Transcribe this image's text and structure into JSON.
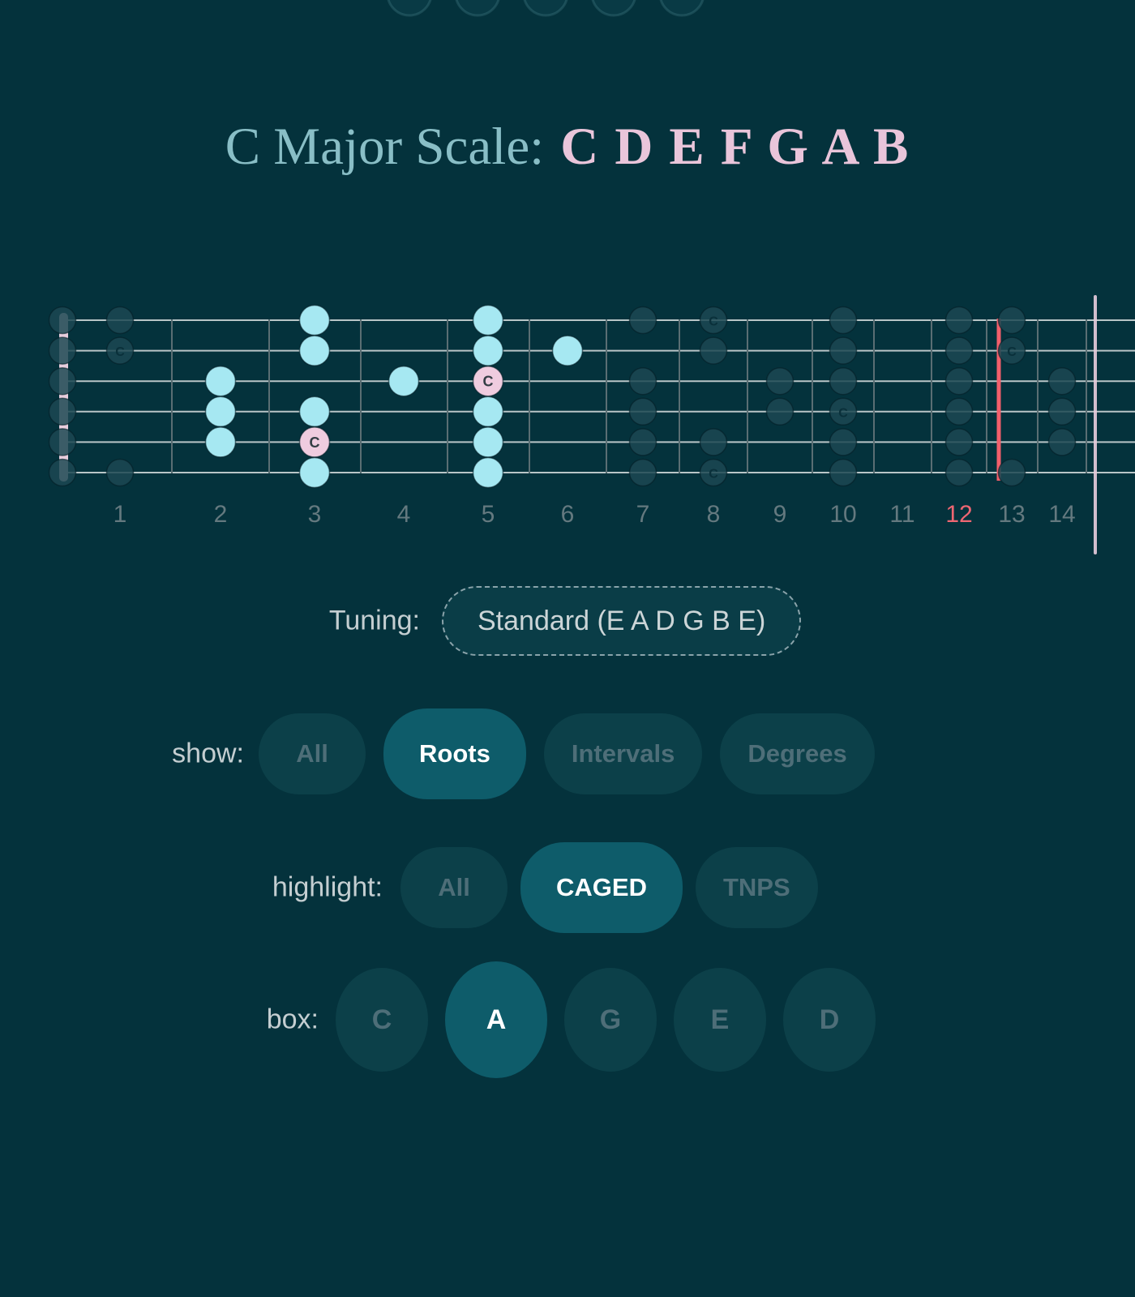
{
  "title": {
    "scale_label": "C Major Scale:",
    "notes": "C D E F G A B"
  },
  "fretboard": {
    "strings_count": 6,
    "fret_numbers": [
      "1",
      "2",
      "3",
      "4",
      "5",
      "6",
      "7",
      "8",
      "9",
      "10",
      "11",
      "12",
      "13",
      "14"
    ],
    "red_fret_number": "12",
    "root_label": "C",
    "dots": [
      {
        "fret": 0,
        "string": 1,
        "type": "dim"
      },
      {
        "fret": 0,
        "string": 2,
        "type": "dim"
      },
      {
        "fret": 0,
        "string": 3,
        "type": "dim"
      },
      {
        "fret": 0,
        "string": 4,
        "type": "dim"
      },
      {
        "fret": 0,
        "string": 5,
        "type": "dim"
      },
      {
        "fret": 0,
        "string": 6,
        "type": "dim"
      },
      {
        "fret": 1,
        "string": 1,
        "type": "dim"
      },
      {
        "fret": 1,
        "string": 2,
        "type": "dim-root"
      },
      {
        "fret": 1,
        "string": 6,
        "type": "dim"
      },
      {
        "fret": 2,
        "string": 3,
        "type": "scale"
      },
      {
        "fret": 2,
        "string": 4,
        "type": "scale"
      },
      {
        "fret": 2,
        "string": 5,
        "type": "scale"
      },
      {
        "fret": 3,
        "string": 1,
        "type": "scale"
      },
      {
        "fret": 3,
        "string": 2,
        "type": "scale"
      },
      {
        "fret": 3,
        "string": 4,
        "type": "scale"
      },
      {
        "fret": 3,
        "string": 5,
        "type": "root"
      },
      {
        "fret": 3,
        "string": 6,
        "type": "scale"
      },
      {
        "fret": 4,
        "string": 3,
        "type": "scale"
      },
      {
        "fret": 5,
        "string": 1,
        "type": "scale"
      },
      {
        "fret": 5,
        "string": 2,
        "type": "scale"
      },
      {
        "fret": 5,
        "string": 3,
        "type": "root"
      },
      {
        "fret": 5,
        "string": 4,
        "type": "scale"
      },
      {
        "fret": 5,
        "string": 5,
        "type": "scale"
      },
      {
        "fret": 5,
        "string": 6,
        "type": "scale"
      },
      {
        "fret": 6,
        "string": 2,
        "type": "scale"
      },
      {
        "fret": 7,
        "string": 1,
        "type": "dim"
      },
      {
        "fret": 7,
        "string": 3,
        "type": "dim"
      },
      {
        "fret": 7,
        "string": 4,
        "type": "dim"
      },
      {
        "fret": 7,
        "string": 5,
        "type": "dim"
      },
      {
        "fret": 7,
        "string": 6,
        "type": "dim"
      },
      {
        "fret": 8,
        "string": 1,
        "type": "dim-root"
      },
      {
        "fret": 8,
        "string": 2,
        "type": "dim"
      },
      {
        "fret": 8,
        "string": 5,
        "type": "dim"
      },
      {
        "fret": 8,
        "string": 6,
        "type": "dim-root"
      },
      {
        "fret": 9,
        "string": 3,
        "type": "dim"
      },
      {
        "fret": 9,
        "string": 4,
        "type": "dim"
      },
      {
        "fret": 10,
        "string": 1,
        "type": "dim"
      },
      {
        "fret": 10,
        "string": 2,
        "type": "dim"
      },
      {
        "fret": 10,
        "string": 3,
        "type": "dim"
      },
      {
        "fret": 10,
        "string": 4,
        "type": "dim-root"
      },
      {
        "fret": 10,
        "string": 5,
        "type": "dim"
      },
      {
        "fret": 10,
        "string": 6,
        "type": "dim"
      },
      {
        "fret": 12,
        "string": 1,
        "type": "dim"
      },
      {
        "fret": 12,
        "string": 2,
        "type": "dim"
      },
      {
        "fret": 12,
        "string": 3,
        "type": "dim"
      },
      {
        "fret": 12,
        "string": 4,
        "type": "dim"
      },
      {
        "fret": 12,
        "string": 5,
        "type": "dim"
      },
      {
        "fret": 12,
        "string": 6,
        "type": "dim"
      },
      {
        "fret": 13,
        "string": 1,
        "type": "dim"
      },
      {
        "fret": 13,
        "string": 2,
        "type": "dim-root"
      },
      {
        "fret": 13,
        "string": 6,
        "type": "dim"
      },
      {
        "fret": 14,
        "string": 3,
        "type": "dim"
      },
      {
        "fret": 14,
        "string": 4,
        "type": "dim"
      },
      {
        "fret": 14,
        "string": 5,
        "type": "dim"
      }
    ]
  },
  "tuning": {
    "label": "Tuning:",
    "value": "Standard (E A D G B E)"
  },
  "controls": {
    "show": {
      "label": "show:",
      "options": [
        {
          "label": "All",
          "selected": false
        },
        {
          "label": "Roots",
          "selected": true
        },
        {
          "label": "Intervals",
          "selected": false
        },
        {
          "label": "Degrees",
          "selected": false
        }
      ]
    },
    "highlight": {
      "label": "highlight:",
      "options": [
        {
          "label": "All",
          "selected": false
        },
        {
          "label": "CAGED",
          "selected": true
        },
        {
          "label": "TNPS",
          "selected": false
        }
      ]
    },
    "box": {
      "label": "box:",
      "options": [
        {
          "label": "C",
          "selected": false
        },
        {
          "label": "A",
          "selected": true
        },
        {
          "label": "G",
          "selected": false
        },
        {
          "label": "E",
          "selected": false
        },
        {
          "label": "D",
          "selected": false
        }
      ]
    }
  },
  "colors": {
    "background": "#04323c",
    "title_teal": "#89bec6",
    "title_pink": "#e9c5da",
    "scale_note_cyan": "#a6e8f2",
    "root_note_pink": "#efccdf",
    "faded_note": "#1c4852",
    "selected_button_teal": "#0e5c6a",
    "octave_line_red": "#f25f6b",
    "red_fret_number": "#ee6672",
    "nut_pink": "#e8cddd"
  }
}
